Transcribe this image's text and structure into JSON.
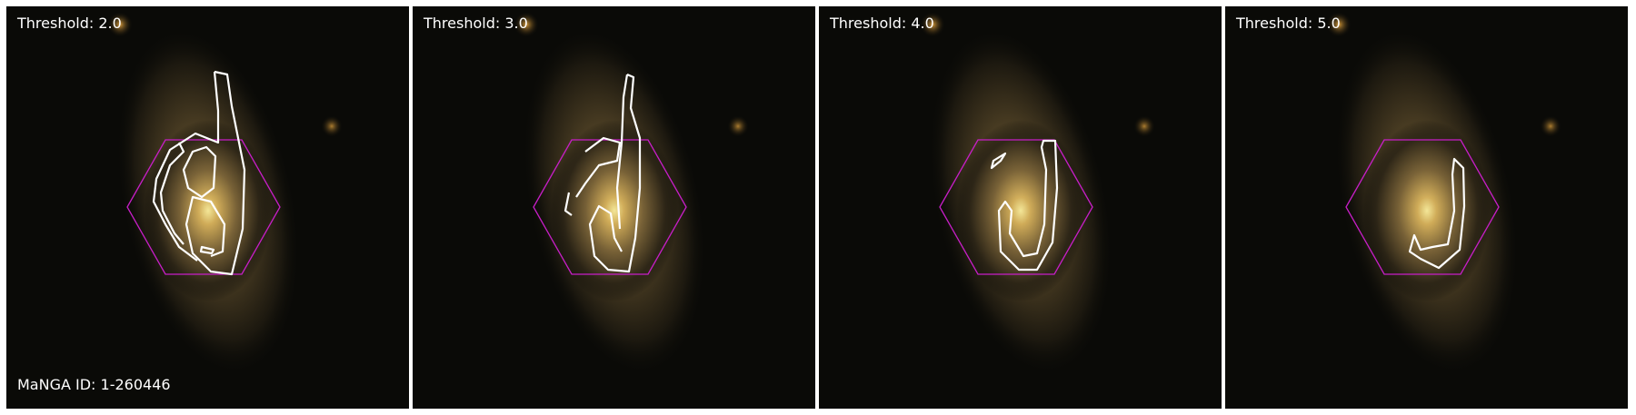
{
  "panels": [
    {
      "threshold_label": "Threshold: 2.0"
    },
    {
      "threshold_label": "Threshold: 3.0"
    },
    {
      "threshold_label": "Threshold: 4.0"
    },
    {
      "threshold_label": "Threshold: 5.0"
    }
  ],
  "galaxy_id_label": "MaNGA ID: 1-260446",
  "colors": {
    "hexagon": "#c81ec8",
    "contour": "#ffffff",
    "background": "#0a0a07"
  }
}
